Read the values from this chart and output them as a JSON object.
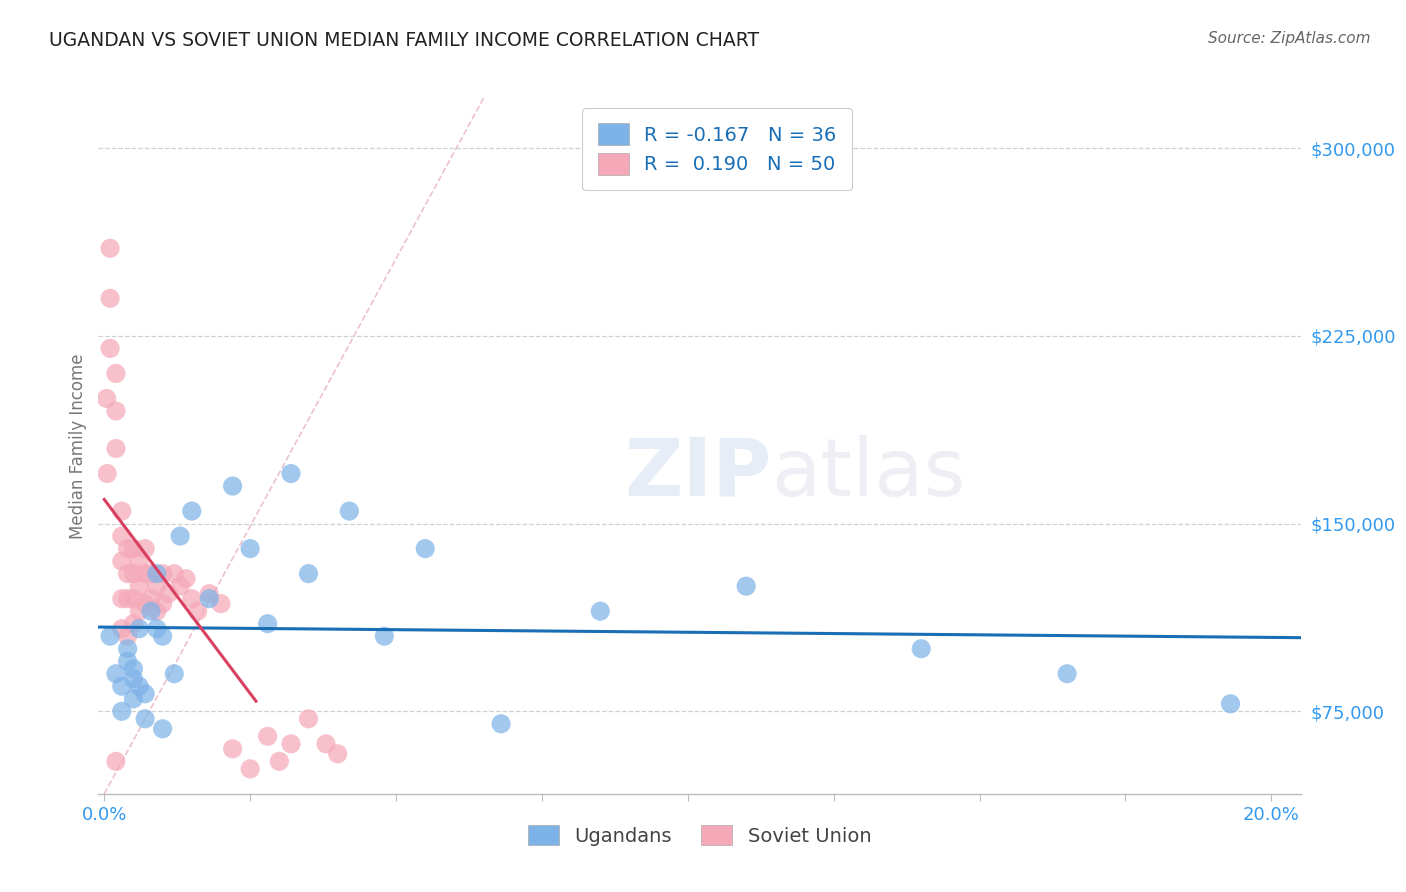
{
  "title": "UGANDAN VS SOVIET UNION MEDIAN FAMILY INCOME CORRELATION CHART",
  "source": "Source: ZipAtlas.com",
  "ylabel": "Median Family Income",
  "ytick_labels": [
    "$75,000",
    "$150,000",
    "$225,000",
    "$300,000"
  ],
  "ytick_values": [
    75000,
    150000,
    225000,
    300000
  ],
  "ylim": [
    42000,
    320000
  ],
  "xlim": [
    -0.001,
    0.205
  ],
  "watermark_zip": "ZIP",
  "watermark_atlas": "atlas",
  "ugandan_scatter_x": [
    0.001,
    0.002,
    0.003,
    0.003,
    0.004,
    0.004,
    0.005,
    0.005,
    0.005,
    0.006,
    0.006,
    0.007,
    0.007,
    0.008,
    0.009,
    0.009,
    0.01,
    0.01,
    0.012,
    0.013,
    0.015,
    0.018,
    0.022,
    0.025,
    0.028,
    0.032,
    0.035,
    0.042,
    0.048,
    0.055,
    0.068,
    0.085,
    0.11,
    0.14,
    0.165,
    0.193
  ],
  "ugandan_scatter_y": [
    105000,
    90000,
    75000,
    85000,
    95000,
    100000,
    80000,
    88000,
    92000,
    108000,
    85000,
    72000,
    82000,
    115000,
    130000,
    108000,
    105000,
    68000,
    90000,
    145000,
    155000,
    120000,
    165000,
    140000,
    110000,
    170000,
    130000,
    155000,
    105000,
    140000,
    70000,
    115000,
    125000,
    100000,
    90000,
    78000
  ],
  "soviet_scatter_x": [
    0.0004,
    0.0005,
    0.001,
    0.001,
    0.001,
    0.002,
    0.002,
    0.002,
    0.002,
    0.003,
    0.003,
    0.003,
    0.003,
    0.003,
    0.004,
    0.004,
    0.004,
    0.004,
    0.005,
    0.005,
    0.005,
    0.005,
    0.006,
    0.006,
    0.006,
    0.007,
    0.007,
    0.007,
    0.008,
    0.008,
    0.009,
    0.009,
    0.01,
    0.01,
    0.011,
    0.012,
    0.013,
    0.014,
    0.015,
    0.016,
    0.018,
    0.02,
    0.022,
    0.025,
    0.028,
    0.03,
    0.032,
    0.035,
    0.038,
    0.04
  ],
  "soviet_scatter_y": [
    200000,
    170000,
    260000,
    240000,
    220000,
    210000,
    195000,
    180000,
    55000,
    155000,
    145000,
    135000,
    120000,
    108000,
    140000,
    130000,
    120000,
    105000,
    140000,
    130000,
    120000,
    110000,
    135000,
    125000,
    115000,
    140000,
    130000,
    118000,
    130000,
    120000,
    125000,
    115000,
    130000,
    118000,
    122000,
    130000,
    125000,
    128000,
    120000,
    115000,
    122000,
    118000,
    60000,
    52000,
    65000,
    55000,
    62000,
    72000,
    62000,
    58000
  ],
  "ugandan_line_color": "#1a6eb5",
  "soviet_line_color": "#d94060",
  "diagonal_color": "#e8b8c0",
  "scatter_ugandan_color": "#7eb3e8",
  "scatter_soviet_color": "#f4a8b8",
  "bg_color": "#ffffff",
  "grid_color": "#d0d0d0",
  "title_color": "#222222",
  "axis_label_color": "#777777",
  "ytick_color": "#3399ee",
  "xtick_color": "#3399ee",
  "legend_r_color": "#1a6eb5",
  "legend_labels": [
    "Ugandans",
    "Soviet Union"
  ]
}
